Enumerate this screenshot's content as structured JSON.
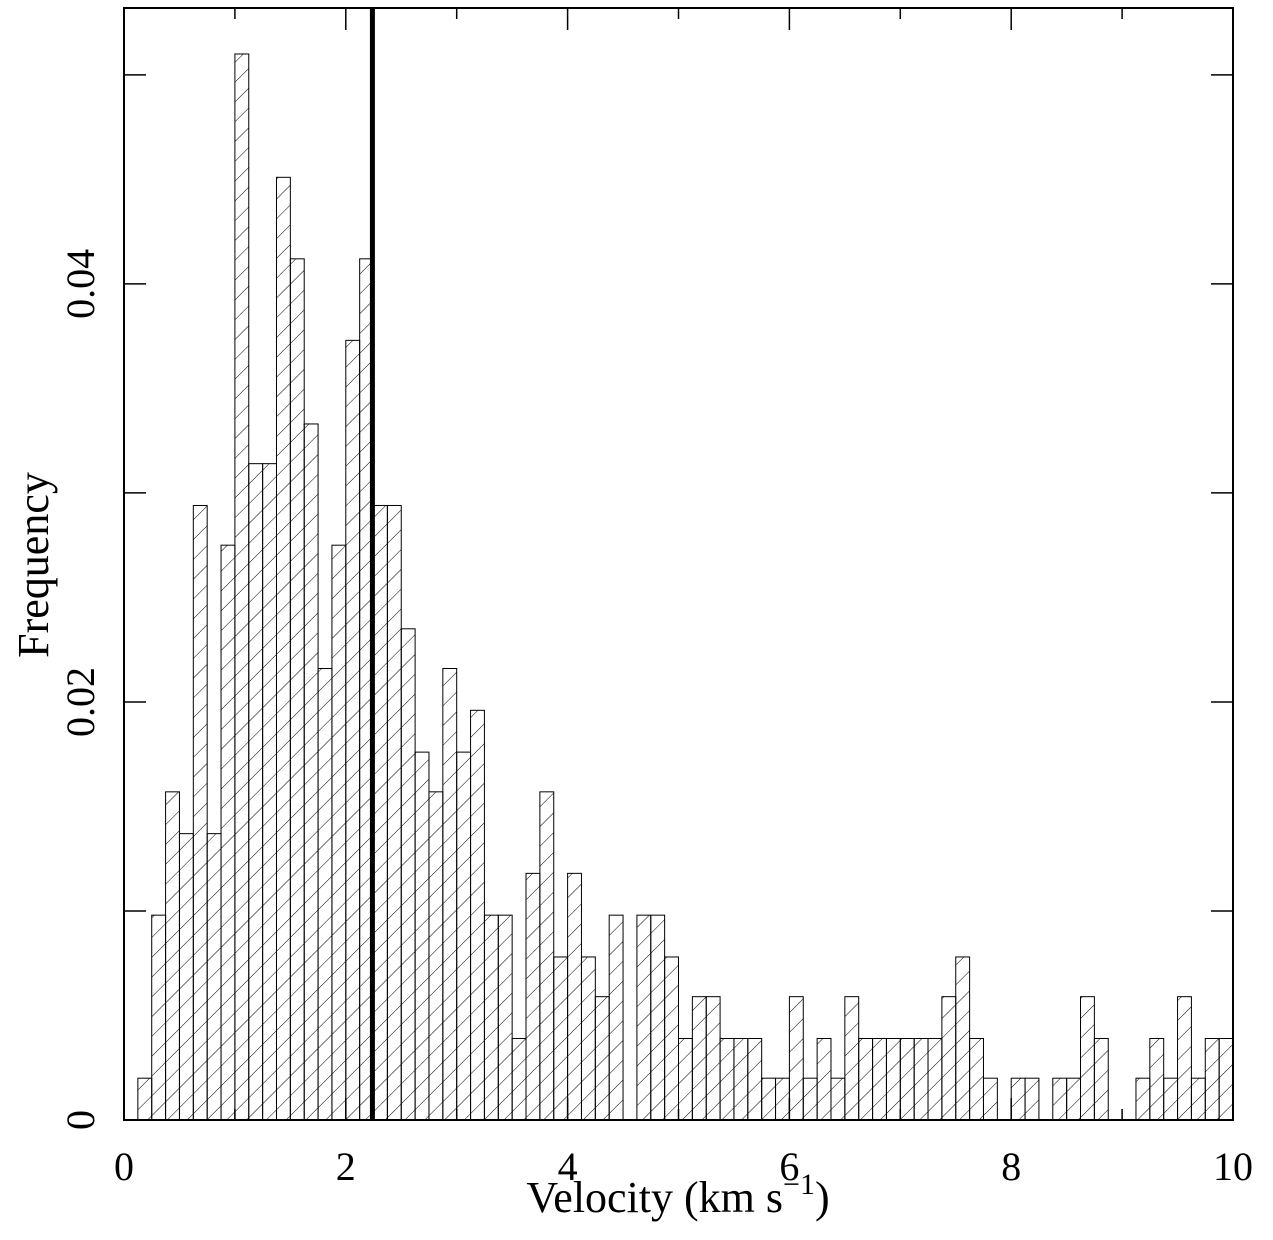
{
  "chart_data": {
    "type": "histogram",
    "xlabel": {
      "text": "Velocity (km s",
      "sup": "−1",
      "end": ")"
    },
    "ylabel": "Frequency",
    "bins": [
      0,
      0.125,
      0.25,
      0.375,
      0.5,
      0.625,
      0.75,
      0.875,
      1,
      1.125,
      1.25,
      1.375,
      1.5,
      1.625,
      1.75,
      1.875,
      2,
      2.125,
      2.25,
      2.375,
      2.5,
      2.625,
      2.75,
      2.875,
      3,
      3.125,
      3.25,
      3.375,
      3.5,
      3.625,
      3.75,
      3.875,
      4,
      4.125,
      4.25,
      4.375,
      4.5,
      4.625,
      4.75,
      4.875,
      5,
      5.125,
      5.25,
      5.375,
      5.5,
      5.625,
      5.75,
      5.875,
      6,
      6.125,
      6.25,
      6.375,
      6.5,
      6.625,
      6.75,
      6.875,
      7,
      7.125,
      7.25,
      7.375,
      7.5,
      7.625,
      7.75,
      7.875,
      8,
      8.125,
      8.25,
      8.375,
      8.5,
      8.625,
      8.75,
      8.875,
      9,
      9.125,
      9.25,
      9.375,
      9.5,
      9.625,
      9.75,
      9.875,
      10
    ],
    "values": [
      0,
      0.002,
      0.0098,
      0.0157,
      0.0137,
      0.0294,
      0.0137,
      0.0275,
      0.051,
      0.0314,
      0.0314,
      0.0451,
      0.0412,
      0.0333,
      0.0216,
      0.0275,
      0.0373,
      0.0412,
      0.0294,
      0.0294,
      0.0235,
      0.0176,
      0.0157,
      0.0216,
      0.0176,
      0.0196,
      0.0098,
      0.0098,
      0.0039,
      0.0118,
      0.0157,
      0.0078,
      0.0118,
      0.0078,
      0.0059,
      0.0098,
      0,
      0.0098,
      0.0098,
      0.0078,
      0.0039,
      0.0059,
      0.0059,
      0.0039,
      0.0039,
      0.0039,
      0.002,
      0.002,
      0.0059,
      0.002,
      0.0039,
      0.002,
      0.0059,
      0.0039,
      0.0039,
      0.0039,
      0.0039,
      0.0039,
      0.0039,
      0.0059,
      0.0078,
      0.0039,
      0.002,
      0,
      0.002,
      0.002,
      0,
      0.002,
      0.002,
      0.0059,
      0.0039,
      0,
      0,
      0.002,
      0.0039,
      0.002,
      0.0059,
      0.002,
      0.0039,
      0.0039
    ],
    "color": "#000000",
    "hatch": "/",
    "vline": 2.24,
    "xlim": [
      0,
      10
    ],
    "xticks": [
      0,
      2,
      4,
      6,
      8,
      10
    ],
    "x_minor_ticks": [
      1,
      3,
      5,
      7,
      9
    ],
    "ylim": [
      0,
      0.0532
    ],
    "yticks": [
      0,
      0.02,
      0.04
    ],
    "y_minor_ticks": [
      0.01,
      0.03,
      0.05
    ],
    "mirror_ticks": true
  }
}
